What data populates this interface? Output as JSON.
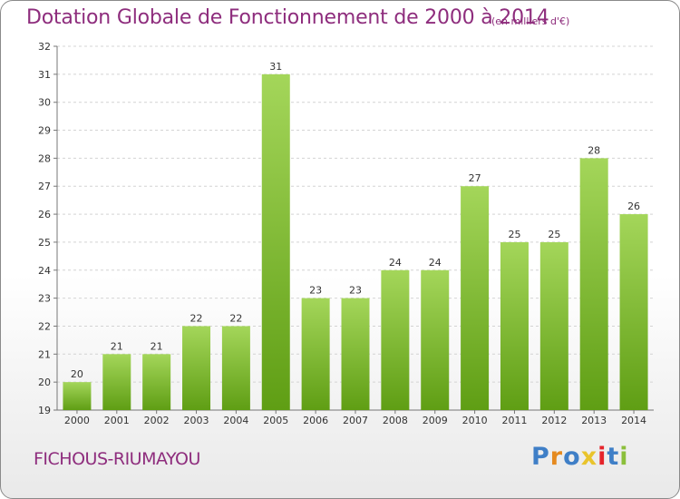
{
  "header": {
    "title": "Dotation Globale de Fonctionnement de 2000 à 2014",
    "unit": "(en milliers d'€)"
  },
  "footer": {
    "commune": "FICHOUS-RIUMAYOU",
    "logo_text": "Proxiti"
  },
  "colors": {
    "title": "#8e2d7d",
    "bar_top": "#a4d65a",
    "bar_bottom": "#5f9e14",
    "logo_letters": [
      "#3f7fc7",
      "#e58a1f",
      "#3f7fc7",
      "#e9c42c",
      "#e5242b",
      "#3f7fc7",
      "#8bbf3b"
    ]
  },
  "chart_data": {
    "type": "bar",
    "title": "Dotation Globale de Fonctionnement de 2000 à 2014",
    "categories": [
      "2000",
      "2001",
      "2002",
      "2003",
      "2004",
      "2005",
      "2006",
      "2007",
      "2008",
      "2009",
      "2010",
      "2011",
      "2012",
      "2013",
      "2014"
    ],
    "values": [
      20,
      21,
      21,
      22,
      22,
      31,
      23,
      23,
      24,
      24,
      27,
      25,
      25,
      28,
      26
    ],
    "xlabel": "",
    "ylabel": "",
    "ylim": [
      19,
      32
    ],
    "yticks": [
      19,
      20,
      21,
      22,
      23,
      24,
      25,
      26,
      27,
      28,
      29,
      30,
      31,
      32
    ],
    "grid": true,
    "legend": "none"
  }
}
